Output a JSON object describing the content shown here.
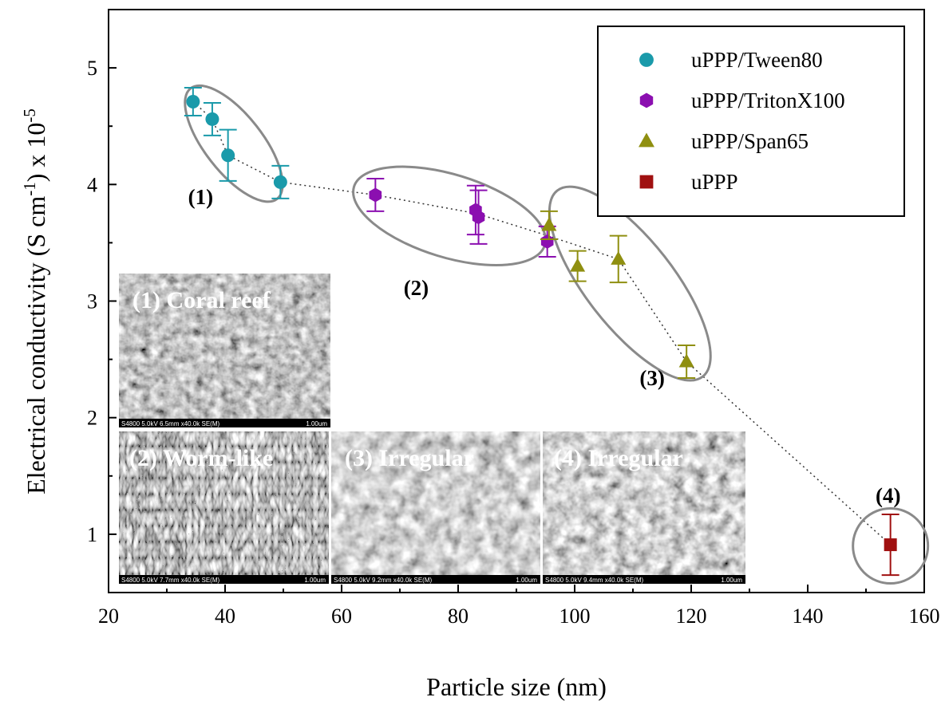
{
  "chart_data": {
    "type": "scatter",
    "xlabel": "Particle size (nm)",
    "ylabel_main": "Electrical conductivity (S cm",
    "ylabel_sup1": "-1",
    "ylabel_mid": ") x 10",
    "ylabel_sup2": "-5",
    "xlim": [
      20,
      160
    ],
    "ylim": [
      0.5,
      5.5
    ],
    "x_ticks": [
      20,
      40,
      60,
      80,
      100,
      120,
      140,
      160
    ],
    "y_ticks": [
      1,
      2,
      3,
      4,
      5
    ],
    "legend_position": "top-right",
    "series": [
      {
        "name": "uPPP/Tween80",
        "color": "#1a9aaa",
        "marker": "circle",
        "points": [
          {
            "x": 34.5,
            "y": 4.71,
            "err": 0.12
          },
          {
            "x": 37.8,
            "y": 4.56,
            "err": 0.14
          },
          {
            "x": 40.5,
            "y": 4.25,
            "err": 0.22
          },
          {
            "x": 49.5,
            "y": 4.02,
            "err": 0.14
          }
        ]
      },
      {
        "name": "uPPP/TritonX100",
        "color": "#8b0fb0",
        "marker": "hexagon",
        "points": [
          {
            "x": 65.8,
            "y": 3.91,
            "err": 0.14
          },
          {
            "x": 83.0,
            "y": 3.78,
            "err": 0.21
          },
          {
            "x": 83.5,
            "y": 3.72,
            "err": 0.23
          },
          {
            "x": 95.3,
            "y": 3.51,
            "err": 0.13
          }
        ]
      },
      {
        "name": "uPPP/Span65",
        "color": "#8f8f10",
        "marker": "triangle",
        "points": [
          {
            "x": 95.6,
            "y": 3.65,
            "err": 0.12
          },
          {
            "x": 100.5,
            "y": 3.3,
            "err": 0.13
          },
          {
            "x": 107.5,
            "y": 3.36,
            "err": 0.2
          },
          {
            "x": 119.2,
            "y": 2.48,
            "err": 0.14
          }
        ]
      },
      {
        "name": "uPPP",
        "color": "#a01010",
        "marker": "square",
        "points": [
          {
            "x": 154.2,
            "y": 0.91,
            "err": 0.26
          }
        ]
      }
    ],
    "trend_line": [
      {
        "x": 34.5,
        "y": 4.71
      },
      {
        "x": 37.8,
        "y": 4.56
      },
      {
        "x": 40.5,
        "y": 4.25
      },
      {
        "x": 49.5,
        "y": 4.02
      },
      {
        "x": 65.8,
        "y": 3.91
      },
      {
        "x": 83.2,
        "y": 3.75
      },
      {
        "x": 95.4,
        "y": 3.56
      },
      {
        "x": 107.5,
        "y": 3.36
      },
      {
        "x": 119.2,
        "y": 2.48
      },
      {
        "x": 154.2,
        "y": 0.91
      }
    ],
    "groups": [
      {
        "label": "(1)",
        "cx": 41.5,
        "cy": 4.35,
        "rx": 36,
        "ry": 88,
        "rot": -38,
        "lx": 35.8,
        "ly": 3.83
      },
      {
        "label": "(2)",
        "cx": 78.5,
        "cy": 3.73,
        "rx": 125,
        "ry": 52,
        "rot": 17,
        "lx": 72.8,
        "ly": 3.05
      },
      {
        "label": "(3)",
        "cx": 109.5,
        "cy": 3.15,
        "rx": 55,
        "ry": 148,
        "rot": -38,
        "lx": 113.3,
        "ly": 2.28
      },
      {
        "label": "(4)",
        "cx": 154.2,
        "cy": 0.9,
        "rx": 47,
        "ry": 47,
        "rot": 0,
        "lx": 153.8,
        "ly": 1.27
      }
    ],
    "insets": [
      {
        "label": "(1) Coral reef",
        "caption_left": "S4800 5.0kV 6.5mm x40.0k SE(M)",
        "caption_right": "1.00um"
      },
      {
        "label": "(2) Worm-like",
        "caption_left": "S4800 5.0kV 7.7mm x40.0k SE(M)",
        "caption_right": "1.00um"
      },
      {
        "label": "(3) Irregular",
        "caption_left": "S4800 5.0kV 9.2mm x40.0k SE(M)",
        "caption_right": "1.00um"
      },
      {
        "label": "(4) Irregular",
        "caption_left": "S4800 5.0kV 9.4mm x40.0k SE(M)",
        "caption_right": "1.00um"
      }
    ]
  }
}
